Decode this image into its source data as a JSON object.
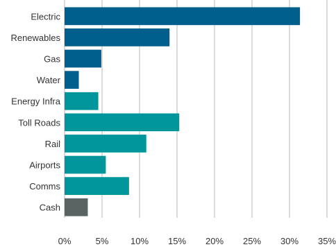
{
  "chart_data": {
    "type": "bar",
    "orientation": "horizontal",
    "categories": [
      "Electric",
      "Renewables",
      "Gas",
      "Water",
      "Energy Infra",
      "Toll Roads",
      "Rail",
      "Airports",
      "Comms",
      "Cash"
    ],
    "values": [
      31.4,
      14.0,
      4.9,
      1.9,
      4.5,
      15.3,
      10.9,
      5.5,
      8.6,
      3.1
    ],
    "bar_colors": [
      "#005f8d",
      "#005f8d",
      "#005f8d",
      "#005f8d",
      "#00969b",
      "#00969b",
      "#00969b",
      "#00969b",
      "#00969b",
      "#5a6463"
    ],
    "x_ticks": [
      "0%",
      "5%",
      "10%",
      "15%",
      "20%",
      "25%",
      "30%",
      "35%"
    ],
    "xlim": [
      0,
      35
    ],
    "grid": true,
    "title": "",
    "xlabel": "",
    "ylabel": ""
  }
}
